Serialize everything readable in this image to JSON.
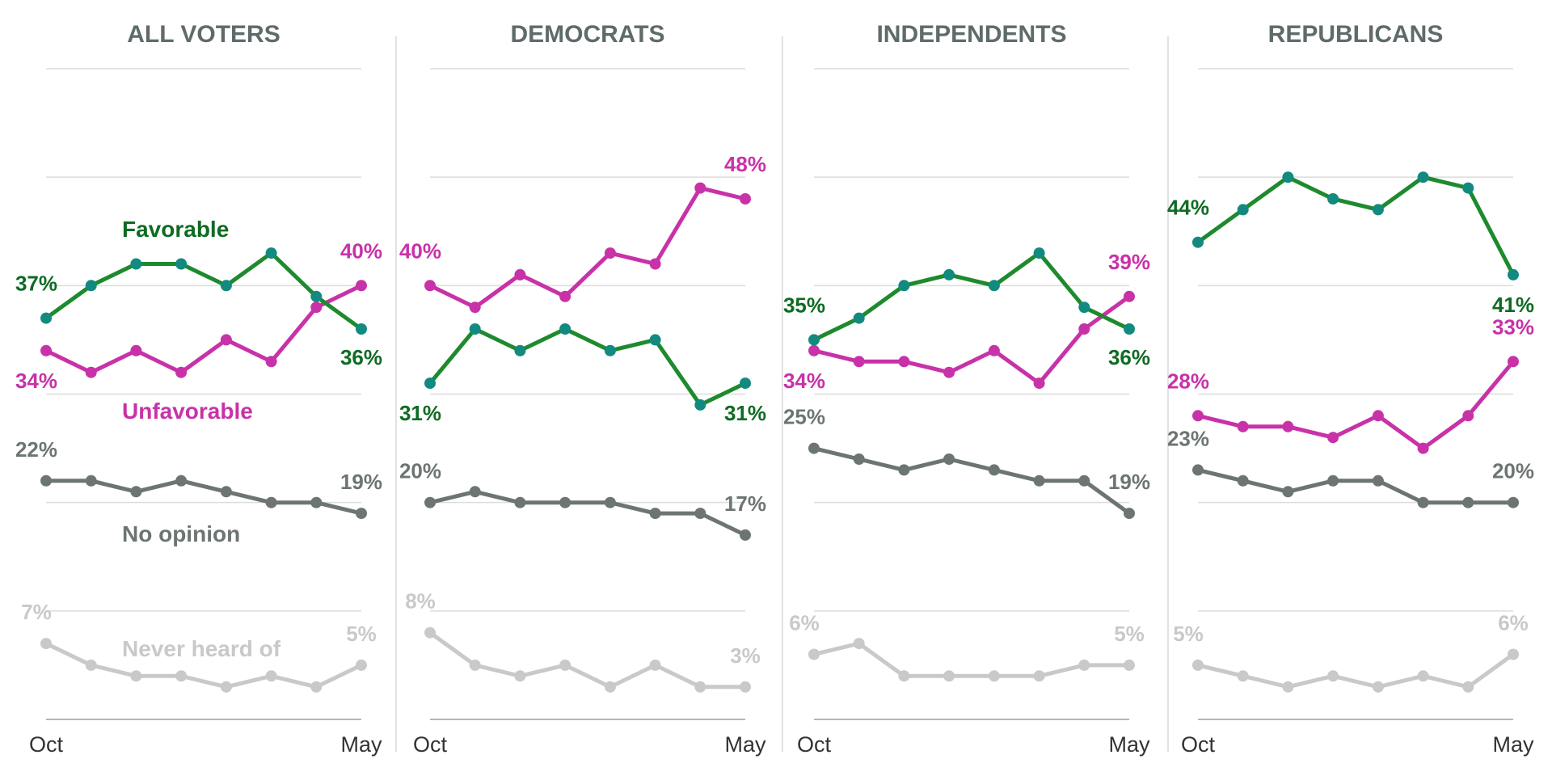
{
  "chart_data": {
    "type": "line",
    "y_unit": "%",
    "ylim": [
      0,
      60
    ],
    "grid": true,
    "x_tick_labels": [
      "Oct",
      "May"
    ],
    "colors": {
      "favorable_line": "#1e8a2e",
      "favorable_marker": "#128a80",
      "favorable_label": "#0e6b23",
      "unfavorable": "#c832a8",
      "no_opinion": "#6d7474",
      "never_heard": "#c9c9c9",
      "grid": "#dcdcdc",
      "divider": "#d8d8d8"
    },
    "series_names": {
      "favorable": "Favorable",
      "unfavorable": "Unfavorable",
      "no_opinion": "No opinion",
      "never_heard": "Never heard of"
    },
    "panels": [
      {
        "title": "ALL VOTERS",
        "series": {
          "favorable": [
            37,
            40,
            42,
            42,
            40,
            43,
            39,
            36
          ],
          "unfavorable": [
            34,
            32,
            34,
            32,
            35,
            33,
            38,
            40
          ],
          "no_opinion": [
            22,
            22,
            21,
            22,
            21,
            20,
            20,
            19
          ],
          "never_heard": [
            7,
            5,
            4,
            4,
            3,
            4,
            3,
            5
          ]
        },
        "labels": {
          "favorable": {
            "first": "37%",
            "last": "36%"
          },
          "unfavorable": {
            "first": "34%",
            "last": "40%"
          },
          "no_opinion": {
            "first": "22%",
            "last": "19%"
          },
          "never_heard": {
            "first": "7%",
            "last": "5%"
          }
        }
      },
      {
        "title": "DEMOCRATS",
        "series": {
          "favorable": [
            31,
            36,
            34,
            36,
            34,
            35,
            29,
            31
          ],
          "unfavorable": [
            40,
            38,
            41,
            39,
            43,
            42,
            49,
            48
          ],
          "no_opinion": [
            20,
            21,
            20,
            20,
            20,
            19,
            19,
            17
          ],
          "never_heard": [
            8,
            5,
            4,
            5,
            3,
            5,
            3,
            3
          ]
        },
        "labels": {
          "favorable": {
            "first": "31%",
            "last": "31%"
          },
          "unfavorable": {
            "first": "40%",
            "last": "48%"
          },
          "no_opinion": {
            "first": "20%",
            "last": "17%"
          },
          "never_heard": {
            "first": "8%",
            "last": "3%"
          }
        }
      },
      {
        "title": "INDEPENDENTS",
        "series": {
          "favorable": [
            35,
            37,
            40,
            41,
            40,
            43,
            38,
            36
          ],
          "unfavorable": [
            34,
            33,
            33,
            32,
            34,
            31,
            36,
            39
          ],
          "no_opinion": [
            25,
            24,
            23,
            24,
            23,
            22,
            22,
            19
          ],
          "never_heard": [
            6,
            7,
            4,
            4,
            4,
            4,
            5,
            5
          ]
        },
        "labels": {
          "favorable": {
            "first": "35%",
            "last": "36%"
          },
          "unfavorable": {
            "first": "34%",
            "last": "39%"
          },
          "no_opinion": {
            "first": "25%",
            "last": "19%"
          },
          "never_heard": {
            "first": "6%",
            "last": "5%"
          }
        }
      },
      {
        "title": "REPUBLICANS",
        "series": {
          "favorable": [
            44,
            47,
            50,
            48,
            47,
            50,
            49,
            41
          ],
          "unfavorable": [
            28,
            27,
            27,
            26,
            28,
            25,
            28,
            33
          ],
          "no_opinion": [
            23,
            22,
            21,
            22,
            22,
            20,
            20,
            20
          ],
          "never_heard": [
            5,
            4,
            3,
            4,
            3,
            4,
            3,
            6
          ]
        },
        "labels": {
          "favorable": {
            "first": "44%",
            "last": "41%"
          },
          "unfavorable": {
            "first": "28%",
            "last": "33%"
          },
          "no_opinion": {
            "first": "23%",
            "last": "20%"
          },
          "never_heard": {
            "first": "5%",
            "last": "6%"
          }
        }
      }
    ]
  }
}
